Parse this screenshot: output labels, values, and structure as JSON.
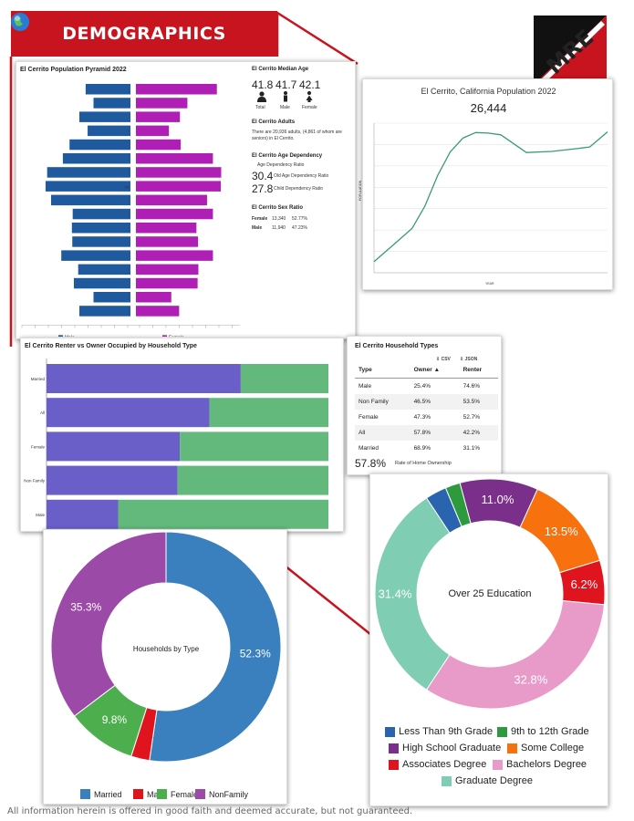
{
  "header": {
    "title": "DEMOGRAPHICS",
    "logo_text": "MRE",
    "globe_icon": "globe-icon"
  },
  "footer": {
    "disclaimer": "All information herein is offered in good faith and deemed accurate, but not guaranteed."
  },
  "colors": {
    "banner": "#c8141e",
    "male": "#1f5a9e",
    "female": "#b01fb5",
    "owner": "#6a5fc8",
    "renter": "#63b97c",
    "line": "#3a9a7a"
  },
  "stats": {
    "median_age": {
      "title": "El Cerrito Median Age",
      "items": [
        {
          "value": "41.8",
          "label": "Total"
        },
        {
          "value": "41.7",
          "label": "Male"
        },
        {
          "value": "42.1",
          "label": "Female"
        }
      ]
    },
    "adults": {
      "title": "El Cerrito Adults",
      "text": "There are 20,936 adults, (4,861 of whom are seniors) in El Cerrito."
    },
    "dependency": {
      "title": "El Cerrito Age Dependency",
      "subtitle": "Age Dependency Ratio",
      "items": [
        {
          "value": "30.4",
          "label": "Old Age Dependency Ratio"
        },
        {
          "value": "27.8",
          "label": "Child Dependency Ratio"
        }
      ]
    },
    "sex_ratio": {
      "title": "El Cerrito Sex Ratio",
      "rows": [
        {
          "label": "Female",
          "count": "13,340",
          "pct": "52.77%"
        },
        {
          "label": "Male",
          "count": "11,940",
          "pct": "47.23%"
        }
      ]
    }
  },
  "household_table": {
    "title": "El Cerrito Household Types",
    "csv_label": "CSV",
    "json_label": "JSON",
    "headers": [
      "Type",
      "Owner",
      "Renter"
    ],
    "rows": [
      {
        "type": "Male",
        "owner": "25.4%",
        "renter": "74.6%"
      },
      {
        "type": "Non Family",
        "owner": "46.5%",
        "renter": "53.5%"
      },
      {
        "type": "Female",
        "owner": "47.3%",
        "renter": "52.7%"
      },
      {
        "type": "All",
        "owner": "57.8%",
        "renter": "42.2%"
      },
      {
        "type": "Married",
        "owner": "68.9%",
        "renter": "31.1%"
      }
    ],
    "rate_value": "57.8%",
    "rate_label": "Rate of Home Ownership"
  },
  "chart_data": [
    {
      "type": "bar",
      "orientation": "horizontal",
      "title": "El Cerrito Population Pyramid 2022",
      "series": [
        {
          "name": "Male",
          "values": [
            570,
            470,
            650,
            545,
            775,
            860,
            1060,
            1080,
            1010,
            735,
            745,
            740,
            880,
            665,
            720,
            470,
            650
          ]
        },
        {
          "name": "Female",
          "values": [
            1030,
            655,
            560,
            420,
            570,
            980,
            1085,
            1080,
            905,
            980,
            770,
            790,
            980,
            795,
            785,
            450,
            550
          ]
        }
      ],
      "center_label": "85",
      "xlim": [
        0,
        1300
      ]
    },
    {
      "type": "line",
      "title": "El Cerrito, California Population 2022",
      "subtitle": "26,444",
      "xlabel": "YEAR",
      "ylabel": "POPULATION",
      "x": [
        1930,
        1940,
        1945,
        1950,
        1955,
        1960,
        1965,
        1970,
        1975,
        1980,
        1990,
        2000,
        2010,
        2015,
        2022
      ],
      "y": [
        3000,
        7000,
        9000,
        13000,
        18500,
        22800,
        25300,
        26300,
        26200,
        25900,
        22700,
        22900,
        23400,
        23700,
        26444
      ],
      "xlim": [
        1930,
        2022
      ],
      "ylim": [
        1000,
        28000
      ]
    },
    {
      "type": "bar",
      "orientation": "horizontal",
      "stacked": true,
      "title": "El Cerrito Renter vs Owner Occupied by Household Type",
      "categories": [
        "Married",
        "All",
        "Female",
        "Non Family",
        "Male"
      ],
      "series": [
        {
          "name": "Owner",
          "values": [
            68.9,
            57.8,
            47.3,
            46.5,
            25.4
          ]
        },
        {
          "name": "Renter",
          "values": [
            31.1,
            42.2,
            52.7,
            53.5,
            74.6
          ]
        }
      ],
      "xlim": [
        0,
        100
      ]
    },
    {
      "type": "pie",
      "title": "Households by Type",
      "labels": [
        "Married",
        "Male",
        "Female",
        "NonFamily"
      ],
      "values": [
        52.3,
        2.6,
        9.8,
        35.3
      ],
      "colors": [
        "#3a80bf",
        "#e0141e",
        "#4cae4c",
        "#9c4aa8"
      ],
      "value_labels": [
        "52.3%",
        "",
        "9.8%",
        "35.3%"
      ]
    },
    {
      "type": "pie",
      "title": "Over 25 Education",
      "labels": [
        "Less Than 9th Grade",
        "9th to 12th Grade",
        "High School Graduate",
        "Some College",
        "Associates Degree",
        "Bachelors Degree",
        "Graduate Degree"
      ],
      "values": [
        3.0,
        2.1,
        11.0,
        13.5,
        6.2,
        32.8,
        31.4
      ],
      "colors": [
        "#2a64ae",
        "#2e9a3e",
        "#7a2f8a",
        "#f7710e",
        "#e0141e",
        "#e89bc9",
        "#7fcdb3"
      ],
      "value_labels": [
        "",
        "",
        "11.0%",
        "13.5%",
        "6.2%",
        "32.8%",
        "31.4%"
      ]
    }
  ]
}
